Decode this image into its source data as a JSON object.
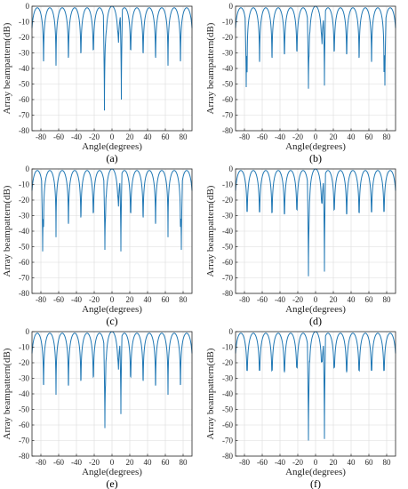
{
  "colors": {
    "line": "#1f77b4",
    "axis": "#262626",
    "grid": "#dcdcdc"
  },
  "chart_data": [
    {
      "type": "line",
      "panel_label": "(a)",
      "xlabel": "Angle(degrees)",
      "ylabel": "Array beampattern(dB)",
      "xlim": [
        -90,
        90
      ],
      "ylim": [
        -80,
        0
      ],
      "xticks": [
        -80,
        -60,
        -40,
        -20,
        0,
        20,
        40,
        60,
        80
      ],
      "yticks": [
        0,
        -10,
        -20,
        -30,
        -40,
        -50,
        -60,
        -70,
        -80
      ],
      "grid": true,
      "series": [
        {
          "floor": -30,
          "edge": -34,
          "lobe_depth": 7,
          "null_spacing": 4.5,
          "main_width": 3.5,
          "peaks": [
            [
              -3,
              -12
            ],
            [
              3,
              -12
            ],
            [
              -6,
              -15
            ],
            [
              6,
              -15
            ],
            [
              -10,
              -19
            ],
            [
              10,
              -19
            ]
          ],
          "nulls": [
            [
              -8.5,
              -67
            ],
            [
              10.5,
              -60
            ]
          ]
        }
      ]
    },
    {
      "type": "line",
      "panel_label": "(b)",
      "xlabel": "Angle(degrees)",
      "ylabel": "Array beampattern(dB)",
      "xlim": [
        -90,
        90
      ],
      "ylim": [
        -80,
        0
      ],
      "xticks": [
        -80,
        -60,
        -40,
        -20,
        0,
        20,
        40,
        60,
        80
      ],
      "yticks": [
        0,
        -10,
        -20,
        -30,
        -40,
        -50,
        -60,
        -70,
        -80
      ],
      "grid": true,
      "series": [
        {
          "floor": -31,
          "edge": -30,
          "lobe_depth": 15,
          "null_spacing": 4.8,
          "main_width": 3.5,
          "peaks": [
            [
              -3,
              -12
            ],
            [
              3,
              -12
            ],
            [
              -6,
              -16
            ],
            [
              6,
              -16
            ]
          ],
          "nulls": [
            [
              -78,
              -52
            ],
            [
              -8,
              -53
            ],
            [
              10,
              -51
            ],
            [
              78,
              -51
            ]
          ]
        }
      ]
    },
    {
      "type": "line",
      "panel_label": "(c)",
      "xlabel": "Angle(degrees)",
      "ylabel": "Array beampattern(dB)",
      "xlim": [
        -90,
        90
      ],
      "ylim": [
        -80,
        0
      ],
      "xticks": [
        -80,
        -60,
        -40,
        -20,
        0,
        20,
        40,
        60,
        80
      ],
      "yticks": [
        0,
        -10,
        -20,
        -30,
        -40,
        -50,
        -60,
        -70,
        -80
      ],
      "grid": true,
      "series": [
        {
          "floor": -30,
          "edge": -30,
          "lobe_depth": 14,
          "null_spacing": 4.5,
          "main_width": 3.5,
          "peaks": [
            [
              -3,
              -12
            ],
            [
              3,
              -12
            ],
            [
              -6,
              -16
            ],
            [
              6,
              -16
            ]
          ],
          "nulls": [
            [
              -78,
              -53
            ],
            [
              -8,
              -52
            ],
            [
              10,
              -53
            ],
            [
              78,
              -52
            ]
          ]
        }
      ]
    },
    {
      "type": "line",
      "panel_label": "(d)",
      "xlabel": "Angle(degrees)",
      "ylabel": "Array beampattern(dB)",
      "xlim": [
        -90,
        90
      ],
      "ylim": [
        -80,
        0
      ],
      "xticks": [
        -80,
        -60,
        -40,
        -20,
        0,
        20,
        40,
        60,
        80
      ],
      "yticks": [
        0,
        -10,
        -20,
        -30,
        -40,
        -50,
        -60,
        -70,
        -80
      ],
      "grid": true,
      "series": [
        {
          "floor": -28,
          "edge": -27,
          "lobe_depth": 2,
          "null_spacing": 5,
          "main_width": 3.5,
          "peaks": [
            [
              -3,
              -13
            ],
            [
              3,
              -13
            ],
            [
              -6,
              -18
            ],
            [
              6,
              -18
            ]
          ],
          "nulls": [
            [
              -8,
              -69
            ],
            [
              10,
              -66
            ]
          ]
        }
      ]
    },
    {
      "type": "line",
      "panel_label": "(e)",
      "xlabel": "Angle(degrees)",
      "ylabel": "Array beampattern(dB)",
      "xlim": [
        -90,
        90
      ],
      "ylim": [
        -80,
        0
      ],
      "xticks": [
        -80,
        -60,
        -40,
        -20,
        0,
        20,
        40,
        60,
        80
      ],
      "yticks": [
        0,
        -10,
        -20,
        -30,
        -40,
        -50,
        -60,
        -70,
        -80
      ],
      "grid": true,
      "series": [
        {
          "floor": -31,
          "edge": -30,
          "lobe_depth": 10,
          "null_spacing": 4.5,
          "main_width": 3.5,
          "peaks": [
            [
              -3,
              -12
            ],
            [
              3,
              -12
            ],
            [
              -6,
              -16
            ],
            [
              6,
              -16
            ]
          ],
          "nulls": [
            [
              -8,
              -62
            ],
            [
              10,
              -53
            ]
          ]
        }
      ]
    },
    {
      "type": "line",
      "panel_label": "(f)",
      "xlabel": "Angle(degrees)",
      "ylabel": "Array beampattern(dB)",
      "xlim": [
        -90,
        90
      ],
      "ylim": [
        -80,
        0
      ],
      "xticks": [
        -80,
        -60,
        -40,
        -20,
        0,
        20,
        40,
        60,
        80
      ],
      "yticks": [
        0,
        -10,
        -20,
        -30,
        -40,
        -50,
        -60,
        -70,
        -80
      ],
      "grid": true,
      "series": [
        {
          "floor": -25,
          "edge": -25,
          "lobe_depth": 1.5,
          "null_spacing": 5,
          "main_width": 3.5,
          "peaks": [
            [
              -3,
              -14
            ],
            [
              3,
              -14
            ],
            [
              -6,
              -18
            ],
            [
              6,
              -18
            ]
          ],
          "nulls": [
            [
              -8,
              -70
            ],
            [
              10,
              -69
            ]
          ]
        }
      ]
    }
  ]
}
